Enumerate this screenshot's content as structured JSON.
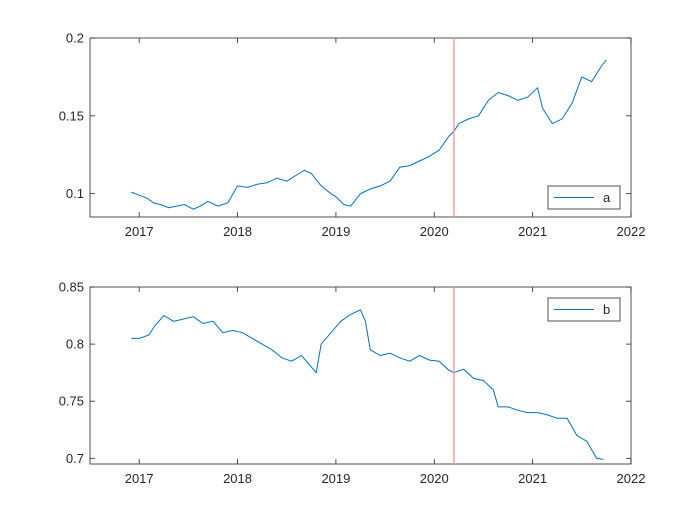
{
  "chart_data": [
    {
      "type": "line",
      "legend_position": "bottom-right",
      "xlim": [
        2016.5,
        2022.0
      ],
      "ylim": [
        0.085,
        0.2
      ],
      "xticks": [
        2017,
        2018,
        2019,
        2020,
        2021,
        2022
      ],
      "xtick_labels": [
        "2017",
        "2018",
        "2019",
        "2020",
        "2021",
        "2022"
      ],
      "yticks": [
        0.1,
        0.15,
        0.2
      ],
      "ytick_labels": [
        "0.1",
        "0.15",
        "0.2"
      ],
      "vline": {
        "x": 2020.2,
        "color": "#f2a0a0"
      },
      "series": [
        {
          "name": "a",
          "color": "#0072bd",
          "x": [
            2016.92,
            2017.0,
            2017.08,
            2017.15,
            2017.22,
            2017.3,
            2017.38,
            2017.46,
            2017.55,
            2017.62,
            2017.7,
            2017.8,
            2017.9,
            2018.0,
            2018.1,
            2018.2,
            2018.3,
            2018.4,
            2018.5,
            2018.6,
            2018.68,
            2018.75,
            2018.85,
            2018.95,
            2019.0,
            2019.08,
            2019.15,
            2019.25,
            2019.35,
            2019.45,
            2019.55,
            2019.65,
            2019.75,
            2019.85,
            2019.95,
            2020.05,
            2020.15,
            2020.2,
            2020.25,
            2020.35,
            2020.45,
            2020.55,
            2020.65,
            2020.75,
            2020.85,
            2020.95,
            2021.05,
            2021.1,
            2021.2,
            2021.3,
            2021.4,
            2021.5,
            2021.6,
            2021.7,
            2021.75
          ],
          "y": [
            0.101,
            0.099,
            0.097,
            0.094,
            0.093,
            0.091,
            0.092,
            0.093,
            0.09,
            0.092,
            0.095,
            0.092,
            0.094,
            0.105,
            0.104,
            0.106,
            0.107,
            0.11,
            0.108,
            0.112,
            0.115,
            0.113,
            0.105,
            0.1,
            0.098,
            0.093,
            0.092,
            0.1,
            0.103,
            0.105,
            0.108,
            0.117,
            0.118,
            0.121,
            0.124,
            0.128,
            0.137,
            0.14,
            0.145,
            0.148,
            0.15,
            0.16,
            0.165,
            0.163,
            0.16,
            0.162,
            0.168,
            0.155,
            0.145,
            0.148,
            0.158,
            0.175,
            0.172,
            0.182,
            0.186
          ]
        }
      ]
    },
    {
      "type": "line",
      "legend_position": "top-right",
      "xlim": [
        2016.5,
        2022.0
      ],
      "ylim": [
        0.695,
        0.85
      ],
      "xticks": [
        2017,
        2018,
        2019,
        2020,
        2021,
        2022
      ],
      "xtick_labels": [
        "2017",
        "2018",
        "2019",
        "2020",
        "2021",
        "2022"
      ],
      "yticks": [
        0.7,
        0.75,
        0.8,
        0.85
      ],
      "ytick_labels": [
        "0.7",
        "0.75",
        "0.8",
        "0.85"
      ],
      "vline": {
        "x": 2020.2,
        "color": "#f2a0a0"
      },
      "series": [
        {
          "name": "b",
          "color": "#0072bd",
          "x": [
            2016.92,
            2017.0,
            2017.1,
            2017.15,
            2017.25,
            2017.35,
            2017.45,
            2017.55,
            2017.65,
            2017.75,
            2017.85,
            2017.95,
            2018.05,
            2018.15,
            2018.25,
            2018.35,
            2018.45,
            2018.55,
            2018.65,
            2018.75,
            2018.8,
            2018.85,
            2018.95,
            2019.05,
            2019.15,
            2019.25,
            2019.3,
            2019.35,
            2019.45,
            2019.55,
            2019.65,
            2019.75,
            2019.85,
            2019.95,
            2020.05,
            2020.15,
            2020.2,
            2020.3,
            2020.4,
            2020.5,
            2020.6,
            2020.65,
            2020.75,
            2020.85,
            2020.95,
            2021.05,
            2021.15,
            2021.25,
            2021.35,
            2021.45,
            2021.55,
            2021.65,
            2021.72
          ],
          "y": [
            0.805,
            0.805,
            0.808,
            0.815,
            0.825,
            0.82,
            0.822,
            0.824,
            0.818,
            0.82,
            0.81,
            0.812,
            0.81,
            0.805,
            0.8,
            0.795,
            0.788,
            0.785,
            0.79,
            0.78,
            0.775,
            0.8,
            0.81,
            0.82,
            0.826,
            0.83,
            0.82,
            0.795,
            0.79,
            0.792,
            0.788,
            0.785,
            0.79,
            0.786,
            0.785,
            0.777,
            0.775,
            0.778,
            0.77,
            0.768,
            0.76,
            0.745,
            0.745,
            0.742,
            0.74,
            0.74,
            0.738,
            0.735,
            0.735,
            0.72,
            0.715,
            0.7,
            0.699
          ]
        }
      ]
    }
  ]
}
